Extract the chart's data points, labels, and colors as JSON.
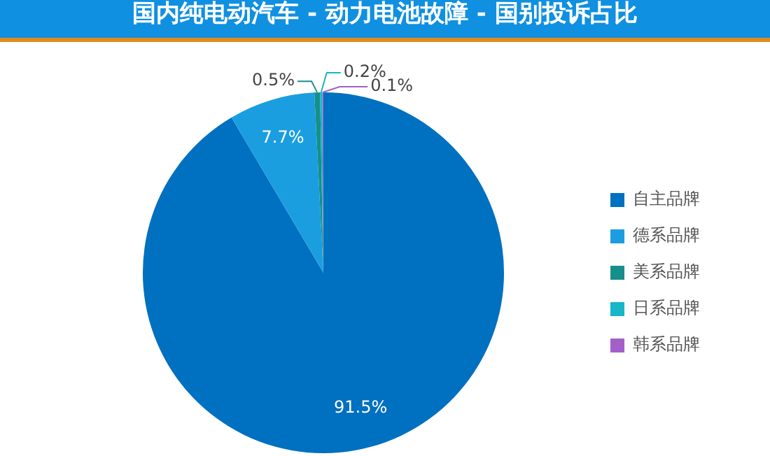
{
  "chart_data": {
    "type": "pie",
    "title": "国内纯电动汽车 - 动力电池故障 - 国别投诉占比",
    "categories": [
      "自主品牌",
      "德系品牌",
      "美系品牌",
      "日系品牌",
      "韩系品牌"
    ],
    "values": [
      91.5,
      7.7,
      0.5,
      0.2,
      0.1
    ],
    "colors": [
      "#0070c0",
      "#1a9ee0",
      "#168f8a",
      "#17b6c8",
      "#a460c8"
    ],
    "value_labels": [
      "91.5%",
      "7.7%",
      "0.5%",
      "0.2%",
      "0.1%"
    ],
    "legend": "right"
  }
}
